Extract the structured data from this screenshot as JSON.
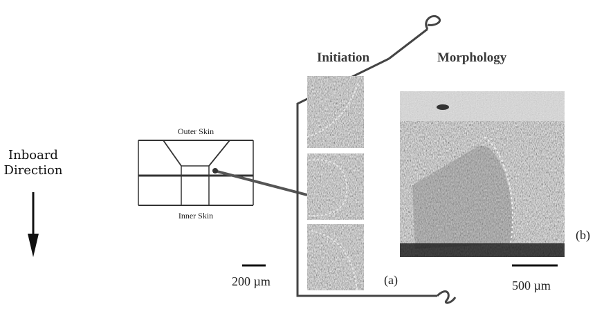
{
  "inboard": {
    "line1": "Inboard",
    "line2": "Direction"
  },
  "schematic": {
    "outer_skin": "Outer Skin",
    "inner_skin": "Inner Skin"
  },
  "headers": {
    "initiation": "Initiation",
    "morphology": "Morphology"
  },
  "labels": {
    "a": "(a)",
    "b": "(b)"
  },
  "scale_bars": {
    "left": "200 µm",
    "right": "500 µm"
  }
}
